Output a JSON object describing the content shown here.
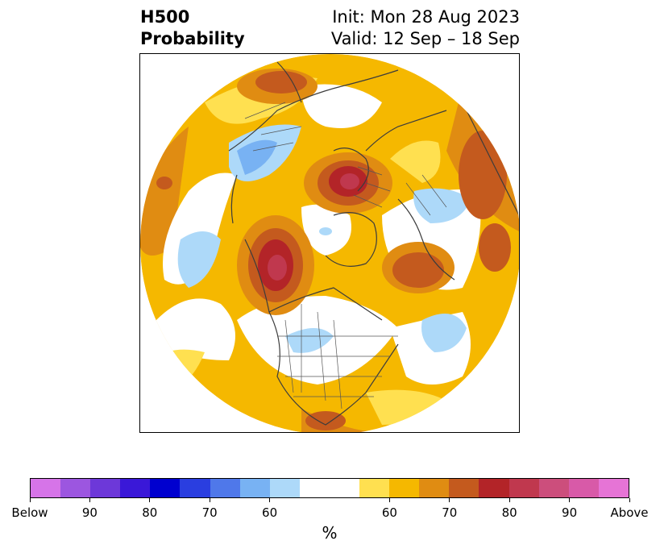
{
  "header": {
    "title_line1": "H500",
    "title_line2": "Probability",
    "init_text": "Init: Mon 28 Aug 2023",
    "valid_text": "Valid: 12 Sep – 18 Sep"
  },
  "map": {
    "projection": "north polar stereographic",
    "features": [
      "coastlines",
      "country borders",
      "US state borders"
    ],
    "regions": [
      {
        "location": "Gulf of Alaska / Alaska",
        "category": "above",
        "level": "80+"
      },
      {
        "location": "Northern Europe / Scandinavia",
        "category": "above",
        "level": "80+"
      },
      {
        "location": "Central Siberia",
        "category": "above",
        "level": "70"
      },
      {
        "location": "Greenland / Labrador",
        "category": "above",
        "level": "70"
      },
      {
        "location": "Southern US / Gulf of Mexico",
        "category": "above",
        "level": "70"
      },
      {
        "location": "North Pacific",
        "category": "below",
        "level": "60"
      },
      {
        "location": "Western Russia",
        "category": "below",
        "level": "60-70"
      },
      {
        "location": "Mongolia / East Asia",
        "category": "below",
        "level": "60"
      },
      {
        "location": "Central North Atlantic",
        "category": "below",
        "level": "60"
      },
      {
        "location": "North-central US",
        "category": "below",
        "level": "60"
      }
    ]
  },
  "colorbar": {
    "colors": [
      "#d674e8",
      "#9c56e0",
      "#6d38d9",
      "#3a18d8",
      "#0000cf",
      "#2a3ee0",
      "#4f78ea",
      "#78b2f3",
      "#add9f9",
      "#ffffff",
      "#ffe050",
      "#f5b800",
      "#e08c12",
      "#c45a1e",
      "#b32428",
      "#c0384e",
      "#cc4e7c",
      "#d85aa8",
      "#e674d6"
    ],
    "tick_labels": [
      "Below",
      "90",
      "80",
      "70",
      "60",
      "60",
      "70",
      "80",
      "90",
      "Above"
    ],
    "unit_label": "%"
  }
}
